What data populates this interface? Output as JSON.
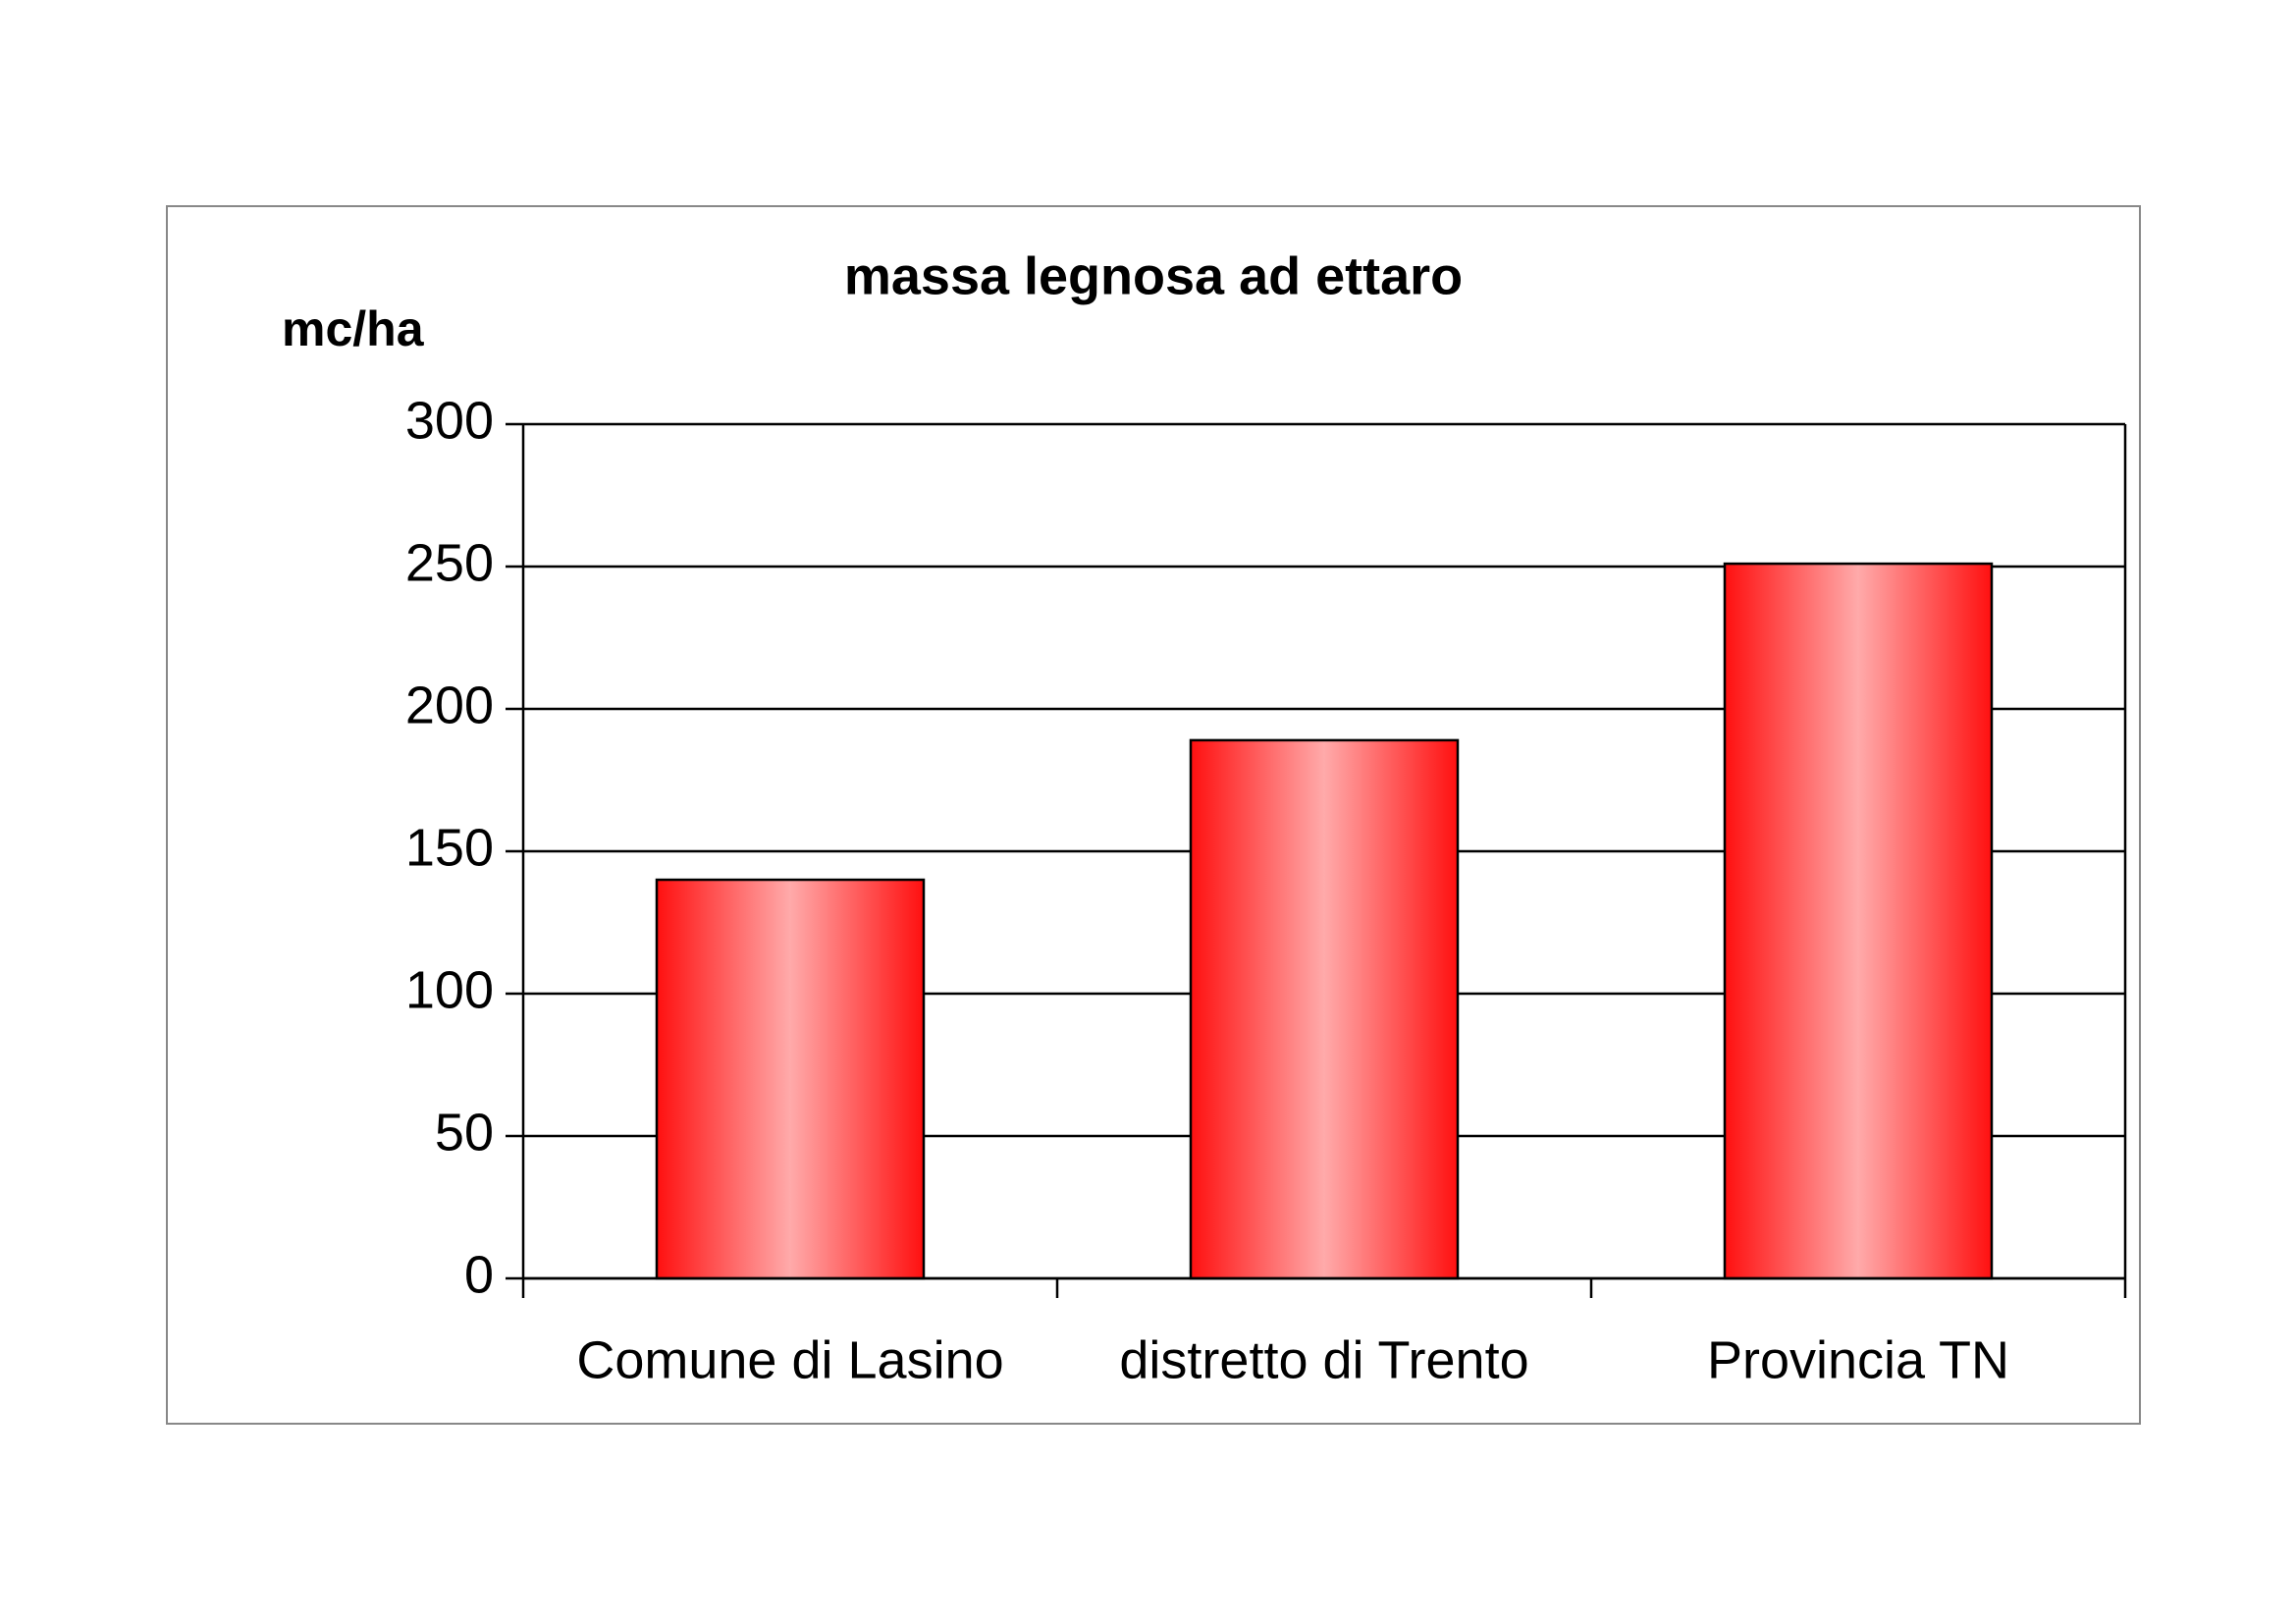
{
  "chart_data": {
    "type": "bar",
    "title": "massa legnosa ad ettaro",
    "y_label": "mc/ha",
    "categories": [
      "Comune di Lasino",
      "distretto di Trento",
      "Provincia TN"
    ],
    "values": [
      140,
      189,
      251
    ],
    "color": "#ff1a1a",
    "ylim": [
      0,
      300
    ],
    "yticks": [
      0,
      50,
      100,
      150,
      200,
      250,
      300
    ],
    "grid": true
  }
}
